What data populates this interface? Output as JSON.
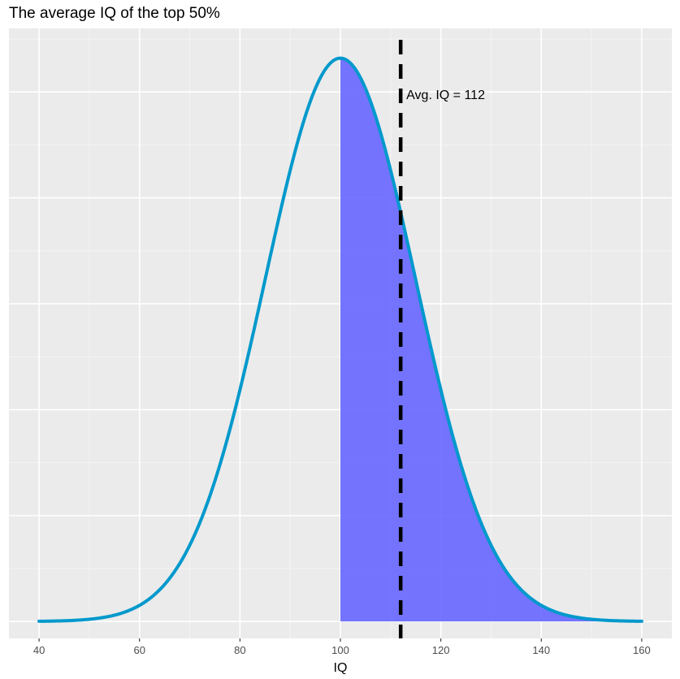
{
  "chart_data": {
    "type": "area",
    "title": "The average IQ of the top 50%",
    "xlabel": "IQ",
    "ylabel": "",
    "xlim": [
      34,
      166
    ],
    "ylim": [
      -0.0008,
      0.028
    ],
    "x_ticks": [
      40,
      60,
      80,
      100,
      120,
      140,
      160
    ],
    "x_tick_labels": [
      "40",
      "60",
      "80",
      "100",
      "120",
      "140",
      "160"
    ],
    "x_minor_ticks": [
      50,
      70,
      90,
      110,
      130,
      150
    ],
    "y_ticks": [
      0,
      0.005,
      0.01,
      0.015,
      0.02,
      0.025
    ],
    "y_tick_labels_shown": false,
    "grid": true,
    "series": [
      {
        "name": "Normal density (mean 100, sd 15)",
        "kind": "line",
        "distribution": "normal",
        "mean": 100,
        "sd": 15,
        "x_range": [
          40,
          160
        ],
        "color": "#0099cc"
      },
      {
        "name": "Top 50% shaded region",
        "kind": "area",
        "distribution": "normal",
        "mean": 100,
        "sd": 15,
        "x_range": [
          100,
          160
        ],
        "color": "#6666ff"
      }
    ],
    "vline": {
      "x": 112,
      "style": "dashed",
      "color": "#000000"
    },
    "annotations": [
      {
        "text": "Avg. IQ = 112",
        "x": 112,
        "y": 0.025
      }
    ],
    "colors": {
      "panel_background": "#ebebeb",
      "grid_major": "#ffffff",
      "grid_minor": "#f5f5f5",
      "tick_label": "#4d4d4d"
    }
  }
}
